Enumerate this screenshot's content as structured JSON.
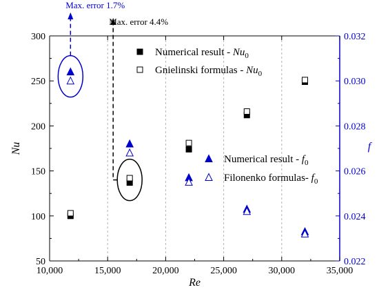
{
  "chart_data": {
    "type": "scatter",
    "xlabel": "Re",
    "ylabel_left": "Nu",
    "ylabel_right": "f",
    "xlim": [
      10000,
      35000
    ],
    "ylim_left": [
      50,
      300
    ],
    "ylim_right": [
      0.022,
      0.032
    ],
    "x_ticks": [
      10000,
      15000,
      20000,
      25000,
      30000,
      35000
    ],
    "x_tick_labels": [
      "10,000",
      "15,000",
      "20,000",
      "25,000",
      "30,000",
      "35,000"
    ],
    "y_left_ticks": [
      50,
      100,
      150,
      200,
      250,
      300
    ],
    "y_left_tick_labels": [
      "50",
      "100",
      "150",
      "200",
      "250",
      "300"
    ],
    "y_right_ticks": [
      0.022,
      0.024,
      0.026,
      0.028,
      0.03,
      0.032
    ],
    "y_right_tick_labels": [
      "0.022",
      "0.024",
      "0.026",
      "0.028",
      "0.030",
      "0.032"
    ],
    "grid": "vertical dashed",
    "x": [
      11800,
      16900,
      22000,
      27000,
      32000
    ],
    "series": [
      {
        "name": "Numerical result - Nu",
        "name_main": "Numerical result - ",
        "name_sym": "Nu",
        "name_sub": "0",
        "axis": "left",
        "marker": "filled-square",
        "color": "#000000",
        "values": [
          100,
          137,
          174,
          212,
          249
        ]
      },
      {
        "name": "Gnielinski formulas - Nu",
        "name_main": "Gnielinski formulas - ",
        "name_sym": "Nu",
        "name_sub": "0",
        "axis": "left",
        "marker": "open-square",
        "color": "#000000",
        "values": [
          103,
          142,
          181,
          216,
          251
        ]
      },
      {
        "name": "Numerical result - f",
        "name_main": "Numerical result - ",
        "name_sym": "f",
        "name_sub": "0",
        "axis": "right",
        "marker": "filled-triangle",
        "color": "#0000cc",
        "values": [
          0.0304,
          0.0272,
          0.0257,
          0.0243,
          0.0233
        ]
      },
      {
        "name": "Filonenko formulas- f",
        "name_main": "Filonenko formulas- ",
        "name_sym": "f",
        "name_sub": "0",
        "axis": "right",
        "marker": "open-triangle",
        "color": "#0000cc",
        "values": [
          0.03,
          0.0268,
          0.0255,
          0.0242,
          0.0232
        ]
      }
    ],
    "annotations": [
      {
        "text": "Max. error 1.7%",
        "color": "#0000cc",
        "at_x": 11800,
        "axis": "right",
        "y_value": 0.0302
      },
      {
        "text": "Max. error 4.4%",
        "color": "#000000",
        "at_x": 16900,
        "axis": "left",
        "y_value": 140
      }
    ],
    "colors": {
      "left_axis": "#000000",
      "right_axis": "#0000cc",
      "grid": "#b3b3b3"
    }
  }
}
